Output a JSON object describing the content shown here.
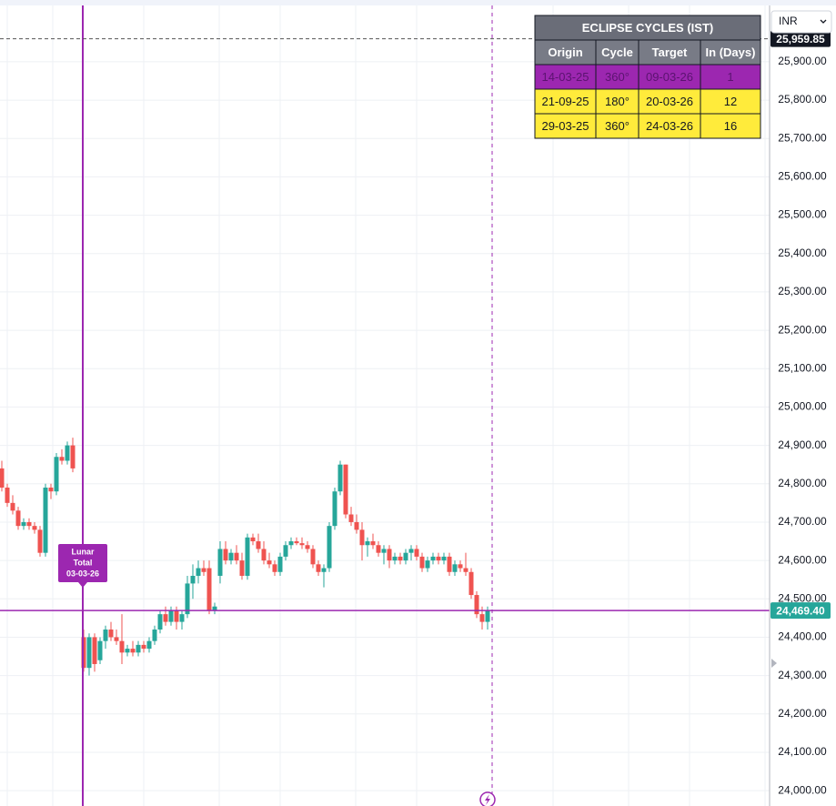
{
  "chart_data": {
    "type": "candlestick",
    "open": [
      24840,
      24790,
      24750,
      24730,
      24690,
      24700,
      24690,
      24680,
      24620,
      24790,
      24780,
      24870,
      24860,
      24900,
      null,
      24400,
      24320,
      24400,
      24340,
      24390,
      24420,
      24400,
      24390,
      24360,
      24370,
      24360,
      24380,
      24370,
      24390,
      24420,
      24460,
      24440,
      24470,
      24440,
      24460,
      24540,
      24560,
      24580,
      24580,
      24470,
      24560,
      24630,
      24600,
      24620,
      24600,
      24560,
      24660,
      24650,
      24630,
      24600,
      24590,
      24570,
      24610,
      24640,
      24650,
      24645,
      24640,
      24630,
      24590,
      24570,
      24580,
      24690,
      24780,
      24850,
      24720,
      24700,
      24680,
      24640,
      24650,
      24640,
      24620,
      24630,
      24600,
      24610,
      24600,
      24620,
      24630,
      24610,
      24580,
      24600,
      24610,
      24600,
      24610,
      24570,
      24590,
      24580,
      24570,
      24510,
      24460,
      24440
    ],
    "high": [
      24860,
      24800,
      24770,
      24740,
      24710,
      24710,
      24700,
      24690,
      24800,
      24800,
      24880,
      24890,
      24910,
      24920,
      null,
      24420,
      24410,
      24410,
      24400,
      24430,
      24440,
      24420,
      24460,
      24380,
      24390,
      24390,
      24390,
      24400,
      24430,
      24470,
      24480,
      24480,
      24480,
      24470,
      24560,
      24590,
      24600,
      24600,
      24600,
      24490,
      24650,
      24650,
      24630,
      24640,
      24620,
      24670,
      24670,
      24670,
      24650,
      24620,
      24600,
      24620,
      24650,
      24660,
      24660,
      24660,
      24650,
      24640,
      24600,
      24590,
      24700,
      24790,
      24860,
      24850,
      24740,
      24720,
      24700,
      24660,
      24670,
      24650,
      24640,
      24640,
      24620,
      24620,
      24630,
      24640,
      24640,
      24620,
      24610,
      24620,
      24620,
      24620,
      24620,
      24600,
      24600,
      24620,
      24580,
      24520,
      24480,
      24480
    ],
    "low": [
      24780,
      24740,
      24720,
      24680,
      24680,
      24680,
      24670,
      24610,
      24610,
      24760,
      24770,
      24850,
      24850,
      24830,
      null,
      24310,
      24300,
      24310,
      24330,
      24370,
      24390,
      24380,
      24330,
      24350,
      24350,
      24350,
      24360,
      24360,
      24380,
      24410,
      24430,
      24430,
      24420,
      24420,
      24450,
      24500,
      24540,
      24560,
      24460,
      24460,
      24540,
      24590,
      24590,
      24590,
      24550,
      24550,
      24640,
      24620,
      24590,
      24580,
      24560,
      24560,
      24600,
      24630,
      24640,
      24630,
      24620,
      24580,
      24560,
      24530,
      24570,
      24680,
      24770,
      24710,
      24690,
      24670,
      24600,
      24610,
      24630,
      24610,
      24590,
      24580,
      24590,
      24590,
      24590,
      24600,
      24600,
      24570,
      24570,
      24590,
      24590,
      24590,
      24560,
      24560,
      24570,
      24560,
      24500,
      24450,
      24420,
      24420
    ],
    "close": [
      24790,
      24750,
      24730,
      24690,
      24700,
      24690,
      24680,
      24620,
      24790,
      24780,
      24870,
      24860,
      24900,
      24840,
      null,
      24320,
      24400,
      24330,
      24390,
      24420,
      24400,
      24390,
      24360,
      24370,
      24360,
      24380,
      24370,
      24390,
      24420,
      24460,
      24440,
      24470,
      24440,
      24460,
      24540,
      24560,
      24580,
      24570,
      24470,
      24480,
      24630,
      24600,
      24620,
      24600,
      24560,
      24660,
      24650,
      24630,
      24600,
      24590,
      24570,
      24610,
      24640,
      24650,
      24645,
      24640,
      24630,
      24590,
      24570,
      24580,
      24690,
      24780,
      24850,
      24720,
      24700,
      24680,
      24640,
      24650,
      24640,
      24620,
      24630,
      24600,
      24610,
      24600,
      24620,
      24630,
      24610,
      24580,
      24600,
      24610,
      24600,
      24610,
      24570,
      24590,
      24580,
      24570,
      24510,
      24460,
      24440,
      24469.4
    ],
    "up_color": "#26a69a",
    "down_color": "#ef5350",
    "ylim": [
      23960,
      26061
    ],
    "yticks": [
      {
        "value": 24000,
        "label": "24,000.00"
      },
      {
        "value": 24100,
        "label": "24,100.00"
      },
      {
        "value": 24200,
        "label": "24,200.00"
      },
      {
        "value": 24300,
        "label": "24,300.00"
      },
      {
        "value": 24400,
        "label": "24,400.00"
      },
      {
        "value": 24500,
        "label": "24,500.00"
      },
      {
        "value": 24600,
        "label": "24,600.00"
      },
      {
        "value": 24700,
        "label": "24,700.00"
      },
      {
        "value": 24800,
        "label": "24,800.00"
      },
      {
        "value": 24900,
        "label": "24,900.00"
      },
      {
        "value": 25000,
        "label": "25,000.00"
      },
      {
        "value": 25100,
        "label": "25,100.00"
      },
      {
        "value": 25200,
        "label": "25,200.00"
      },
      {
        "value": 25300,
        "label": "25,300.00"
      },
      {
        "value": 25400,
        "label": "25,400.00"
      },
      {
        "value": 25500,
        "label": "25,500.00"
      },
      {
        "value": 25600,
        "label": "25,600.00"
      },
      {
        "value": 25700,
        "label": "25,700.00"
      },
      {
        "value": 25800,
        "label": "25,800.00"
      },
      {
        "value": 25900,
        "label": "25,900.00"
      }
    ],
    "grid": true,
    "price_lines": [
      {
        "value": 24469.4,
        "label": "24,469.40",
        "color": "#9c27b0",
        "label_color": "#26a69a",
        "style": "solid"
      },
      {
        "value": 25959.85,
        "label": "25,959.85",
        "color": "#555555",
        "label_color": "#131722",
        "style": "dashed"
      }
    ],
    "event": {
      "lines": [
        "Lunar",
        "Total",
        "03-03-26"
      ],
      "color": "#9c27b0"
    },
    "currency": "INR"
  },
  "eclipse_table": {
    "title": "ECLIPSE CYCLES (IST)",
    "columns": [
      "Origin",
      "Cycle",
      "Target",
      "In (Days)"
    ],
    "rows": [
      [
        "14-03-25",
        "360°",
        "09-03-26",
        "1"
      ],
      [
        "21-09-25",
        "180°",
        "20-03-26",
        "12"
      ],
      [
        "29-03-25",
        "360°",
        "24-03-26",
        "16"
      ]
    ],
    "row_colors": [
      "#9c27b0",
      "#ffeb3b",
      "#ffeb3b"
    ]
  }
}
